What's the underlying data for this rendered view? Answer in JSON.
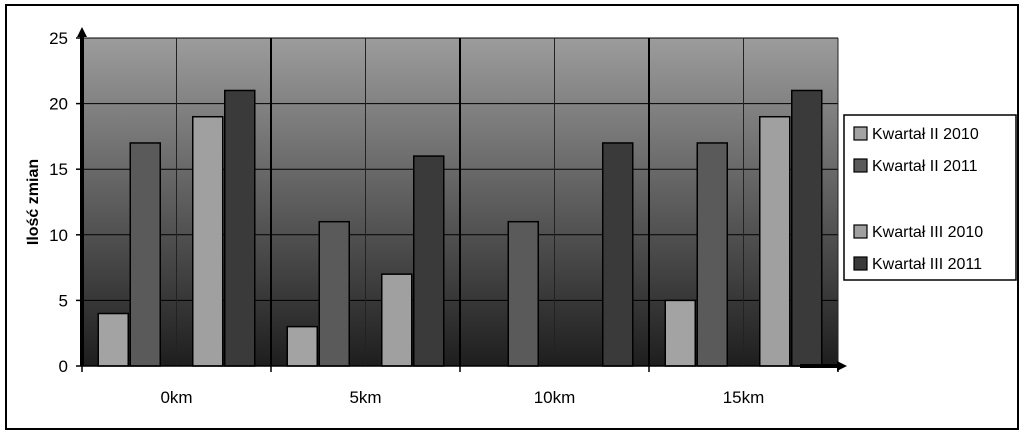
{
  "chart_data": {
    "type": "bar",
    "title": "",
    "xlabel": "",
    "ylabel": "Ilość zmian",
    "categories": [
      "0km",
      "5km",
      "10km",
      "15km"
    ],
    "ylim": [
      0,
      25
    ],
    "yticks": [
      0,
      5,
      10,
      15,
      20,
      25
    ],
    "grid": true,
    "legend_position": "right",
    "series": [
      {
        "name": "Kwartał II 2010",
        "values": [
          4,
          3,
          0,
          5
        ],
        "color": "#a3a3a3"
      },
      {
        "name": "Kwartał II 2011",
        "values": [
          17,
          11,
          11,
          17
        ],
        "color": "#5a5a5a"
      },
      {
        "name": "Kwartał III 2010",
        "values": [
          19,
          7,
          0,
          19
        ],
        "color": "#a0a0a0"
      },
      {
        "name": "Kwartał III 2011",
        "values": [
          21,
          16,
          17,
          21
        ],
        "color": "#3a3a3a"
      }
    ],
    "plot_gradient": [
      "#9c9c9c",
      "#1e1e1e"
    ]
  }
}
